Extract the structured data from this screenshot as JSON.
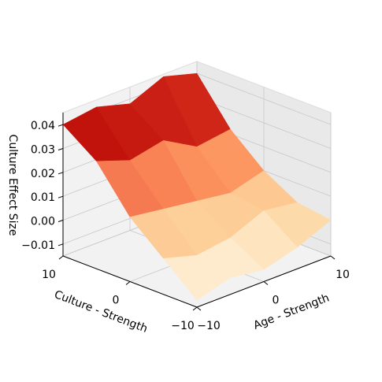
{
  "chart_data": {
    "type": "surface",
    "colormap": "OrRd",
    "xlabel": "Age - Strength",
    "ylabel": "Culture - Strength",
    "zlabel": "Culture Effect Size",
    "x": [
      -10,
      -5,
      0,
      5,
      10
    ],
    "y": [
      -10,
      -5,
      0,
      5,
      10
    ],
    "z": [
      [
        -0.012,
        -0.008,
        -0.01,
        -0.006,
        0.0
      ],
      [
        0.0,
        -0.004,
        -0.002,
        0.004,
        0.002
      ],
      [
        0.012,
        0.01,
        0.008,
        0.006,
        0.01
      ],
      [
        0.03,
        0.025,
        0.028,
        0.02,
        0.022
      ],
      [
        0.04,
        0.042,
        0.038,
        0.044,
        0.04
      ]
    ],
    "xlim": [
      -10,
      10
    ],
    "ylim": [
      -10,
      10
    ],
    "zlim": [
      -0.015,
      0.045
    ],
    "xticks": [
      {
        "value": -10,
        "label": "−10"
      },
      0,
      10
    ],
    "yticks": [
      {
        "value": -10,
        "label": "−10"
      },
      0,
      10
    ],
    "zticks": [
      {
        "value": -0.01,
        "label": "−0.01"
      },
      {
        "value": 0,
        "label": "0.00"
      },
      0.01,
      0.02,
      0.03,
      0.04
    ],
    "grid": true
  }
}
